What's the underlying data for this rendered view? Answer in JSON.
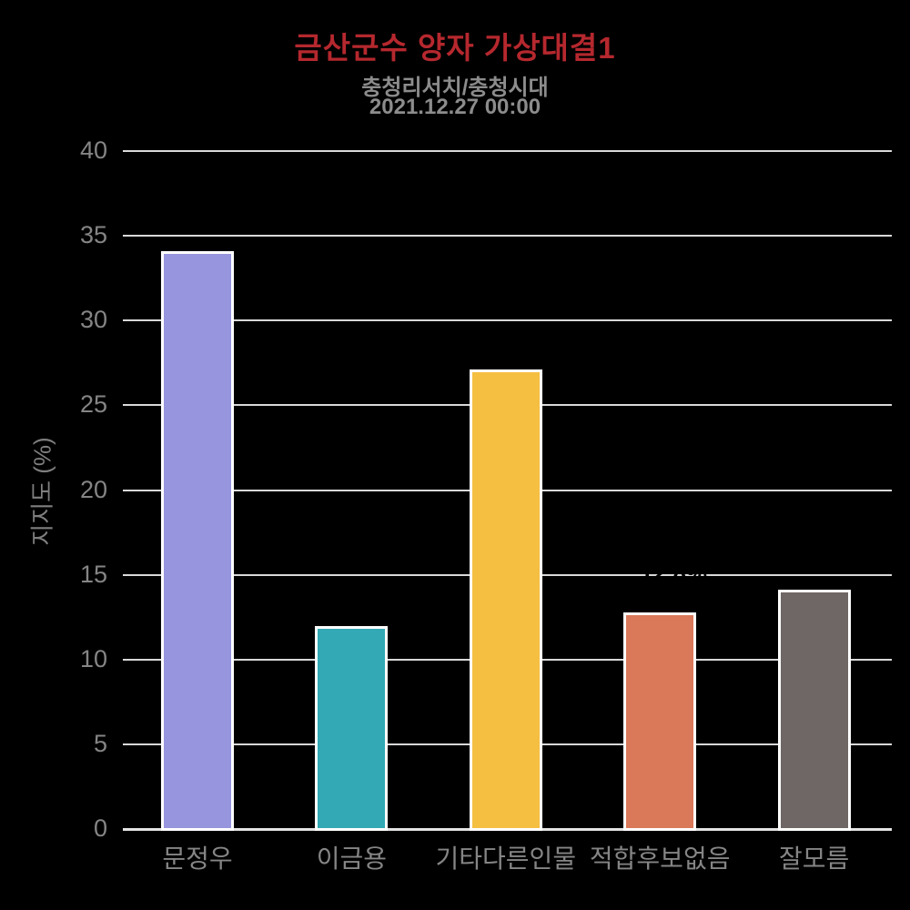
{
  "header": {
    "title": "금산군수 양자 가상대결1",
    "source_line": "충청리서치/충청시대",
    "date_line": "2021.12.27 00:00"
  },
  "colors": {
    "background": "#000000",
    "title": "#b5282e",
    "subtitle": "#8c8c8c",
    "timestamp": "#8c8c8c",
    "axis_label": "#7f7f7f",
    "tick_label": "#858585",
    "gridline": "#d9d9d9",
    "axis_line": "#e3e3e3",
    "bar_border": "#ffffff"
  },
  "chart_data": {
    "type": "bar",
    "title": "금산군수 양자 가상대결1",
    "subtitle": "충청리서치/충청시대",
    "date": "2021.12.27 00:00",
    "categories": [
      "문정우",
      "이금용",
      "기타다른인물",
      "적합후보없음",
      "잘모름"
    ],
    "values": [
      34.1,
      12.0,
      27.1,
      12.8,
      14.1
    ],
    "bar_colors": [
      "#9795dd",
      "#32a9b4",
      "#f5bf42",
      "#d9795a",
      "#6f6765"
    ],
    "xlabel": "",
    "ylabel": "지지도 (%)",
    "ylim": [
      0,
      40
    ],
    "yticks": [
      "0",
      "5",
      "10",
      "15",
      "20",
      "25",
      "30",
      "35",
      "40"
    ],
    "grid": true,
    "legend_position": "none",
    "annotations": [
      {
        "text": "12.8%",
        "category_index": 3,
        "y_value": 15.1,
        "color": "#000000"
      }
    ]
  }
}
